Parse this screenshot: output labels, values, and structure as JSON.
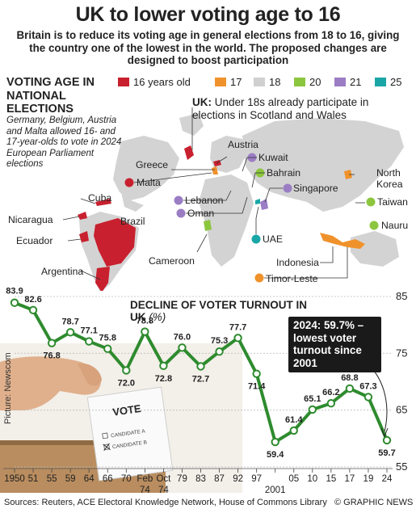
{
  "header": {
    "title": "UK to lower voting age to 16",
    "subtitle": "Britain is to reduce its voting age in general elections from 18 to 16, giving the country one of the lowest in the world. The proposed changes are designed to boost participation"
  },
  "map": {
    "heading": "VOTING AGE IN NATIONAL ELECTIONS",
    "note": "Germany, Belgium, Austria and Malta allowed 16- and 17-year-olds to vote in 2024 European Parliament elections",
    "uk_note_label": "UK:",
    "uk_note_text": "Under 18s already participate in elections in Scotland and Wales",
    "legend": [
      {
        "label": "16 years old",
        "color": "#c8202e"
      },
      {
        "label": "17",
        "color": "#f0922b"
      },
      {
        "label": "18",
        "color": "#d0d0d0"
      },
      {
        "label": "20",
        "color": "#8cc63f"
      },
      {
        "label": "21",
        "color": "#9b7dc4"
      },
      {
        "label": "25",
        "color": "#1aa6a6"
      }
    ],
    "countries": {
      "greece": "Greece",
      "austria": "Austria",
      "malta": "Malta",
      "kuwait": "Kuwait",
      "bahrain": "Bahrain",
      "north_korea": "North Korea",
      "cuba": "Cuba",
      "lebanon": "Lebanon",
      "singapore": "Singapore",
      "taiwan": "Taiwan",
      "oman": "Oman",
      "nicaragua": "Nicaragua",
      "brazil": "Brazil",
      "nauru": "Nauru",
      "uae": "UAE",
      "ecuador": "Ecuador",
      "cameroon": "Cameroon",
      "indonesia": "Indonesia",
      "argentina": "Argentina",
      "timor_leste": "Timor-Leste"
    }
  },
  "chart_data": {
    "type": "line",
    "title": "DECLINE OF VOTER TURNOUT IN UK",
    "title_unit": "(%)",
    "x": [
      "1950",
      "51",
      "55",
      "59",
      "64",
      "66",
      "70",
      "Feb 74",
      "Oct 74",
      "79",
      "83",
      "87",
      "92",
      "97",
      "2001",
      "05",
      "10",
      "15",
      "17",
      "19",
      "24"
    ],
    "x_tick_row1": [
      "1950",
      "51",
      "55",
      "59",
      "64",
      "66",
      "70",
      "Feb",
      "Oct",
      "79",
      "83",
      "87",
      "92",
      "97",
      "",
      "05",
      "10",
      "15",
      "17",
      "19",
      "24"
    ],
    "x_tick_row2": [
      "",
      "",
      "",
      "",
      "",
      "",
      "",
      "74",
      "74",
      "",
      "",
      "",
      "",
      "",
      "2001",
      "",
      "",
      "",
      "",
      "",
      ""
    ],
    "series": [
      {
        "values": [
          83.9,
          82.6,
          76.8,
          78.7,
          77.1,
          75.8,
          72.0,
          78.8,
          72.8,
          76.0,
          72.7,
          75.3,
          77.7,
          71.4,
          59.4,
          61.4,
          65.1,
          66.2,
          68.8,
          67.3,
          59.7
        ]
      }
    ],
    "data_labels": [
      "83.9",
      "82.6",
      "76.8",
      "78.7",
      "77.1",
      "75.8",
      "72.0",
      "78.8",
      "72.8",
      "76.0",
      "72.7",
      "75.3",
      "77.7",
      "71.4",
      "59.4",
      "61.4",
      "65.1",
      "66.2",
      "68.8",
      "67.3",
      "59.7"
    ],
    "ylim": [
      55,
      85
    ],
    "y_ticks": [
      "85",
      "75",
      "65",
      "55"
    ],
    "annotation": "2024: 59.7% – lowest voter turnout since 2001",
    "color": "#2e8b2e"
  },
  "photo": {
    "ballot_title": "VOTE",
    "candidate_a": "CANDIDATE A",
    "candidate_b": "CANDIDATE B",
    "credit": "Picture: Newscom"
  },
  "footer": {
    "sources": "Sources: Reuters, ACE Electoral Knowledge Network, House of Commons Library",
    "brand": "© GRAPHIC NEWS"
  }
}
